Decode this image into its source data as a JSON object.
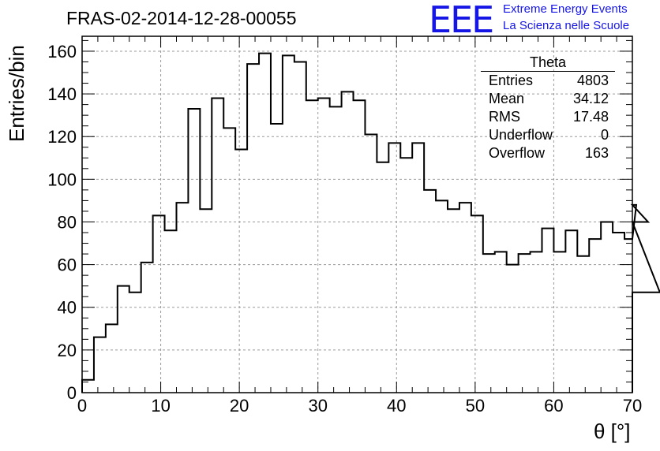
{
  "title": "FRAS-02-2014-12-28-00055",
  "logo": {
    "mark": "EEE",
    "line1": "Extreme Energy Events",
    "line2": "La Scienza nelle Scuole"
  },
  "stats_box": {
    "title": "Theta",
    "rows": [
      {
        "label": "Entries",
        "value": "4803"
      },
      {
        "label": "Mean",
        "value": "34.12"
      },
      {
        "label": "RMS",
        "value": "17.48"
      },
      {
        "label": "Underflow",
        "value": "0"
      },
      {
        "label": "Overflow",
        "value": "163"
      }
    ]
  },
  "colors": {
    "line": "#000000",
    "grid": "#9a9a9a",
    "logo": "#1515e6"
  },
  "chart_data": {
    "type": "bar",
    "style": "step-histogram",
    "xlabel": "θ [°]",
    "ylabel": "Entries/bin",
    "xlim": [
      0,
      70
    ],
    "ylim": [
      0,
      167
    ],
    "grid": true,
    "xticks": [
      0,
      10,
      20,
      30,
      40,
      50,
      60,
      70
    ],
    "yticks": [
      0,
      20,
      40,
      60,
      80,
      100,
      120,
      140,
      160
    ],
    "bin_edges_start": 0,
    "bin_width": 1.5,
    "values": [
      6,
      26,
      32,
      50,
      47,
      61,
      83,
      76,
      89,
      133,
      86,
      138,
      124,
      114,
      154,
      159,
      126,
      158,
      155,
      137,
      138,
      134,
      141,
      137,
      121,
      108,
      117,
      110,
      117,
      95,
      90,
      86,
      89,
      83,
      65,
      66,
      60,
      65,
      66,
      77,
      66,
      76,
      64,
      72,
      80,
      75,
      72,
      88,
      80,
      47
    ]
  }
}
